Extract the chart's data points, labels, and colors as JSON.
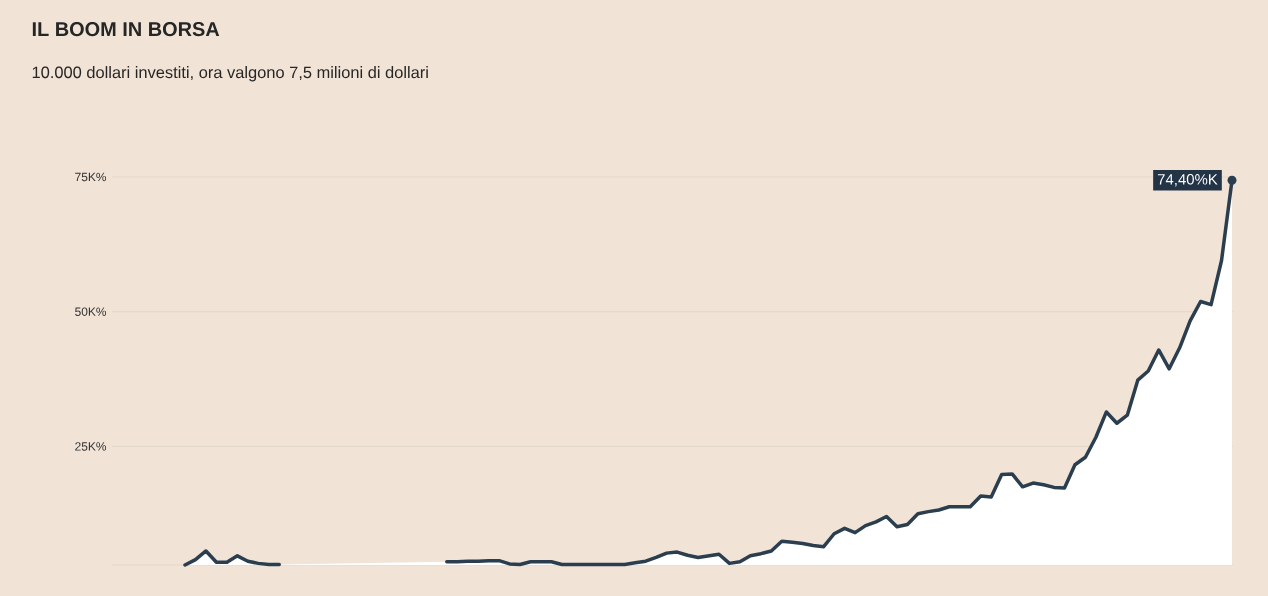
{
  "chart_data": {
    "type": "area",
    "title": "IL BOOM IN BORSA",
    "subtitle": "10.000 dollari investiti, ora valgono  7,5 milioni di dollari",
    "categories": [
      null,
      null,
      null,
      null,
      null,
      null,
      null,
      null,
      null,
      null,
      null,
      null,
      null,
      null,
      null,
      null,
      null,
      null,
      null,
      null,
      null,
      null,
      null,
      null,
      null,
      null,
      null,
      null,
      null,
      null,
      null,
      null,
      null,
      null,
      null,
      null,
      null,
      null,
      null,
      null,
      null,
      null,
      null,
      null,
      null,
      null,
      null,
      null,
      null,
      null,
      null,
      null,
      null,
      null,
      null,
      null,
      null,
      null,
      null,
      null,
      null,
      null,
      null,
      null,
      null,
      null,
      null,
      null,
      null,
      null,
      null,
      null,
      null,
      null,
      null,
      null,
      null,
      null,
      null,
      null,
      null,
      null,
      null,
      null,
      null,
      null,
      null,
      null,
      null,
      null,
      null,
      null,
      null,
      null,
      null,
      null,
      null,
      null,
      null,
      null,
      null
    ],
    "series": [
      {
        "color": "#2b3e50",
        "values": [
          3.0,
          4.0,
          5.6,
          3.5,
          3.5,
          4.7,
          3.7,
          3.3,
          3.1,
          3.1,
          null,
          null,
          null,
          null,
          null,
          null,
          null,
          null,
          null,
          null,
          null,
          null,
          null,
          null,
          null,
          3.6,
          3.6,
          3.7,
          3.7,
          3.8,
          3.8,
          3.2,
          3.1,
          3.6,
          3.6,
          3.6,
          3.1,
          3.1,
          3.1,
          3.1,
          3.1,
          3.1,
          3.1,
          3.4,
          3.7,
          4.4,
          5.2,
          5.4,
          4.8,
          4.4,
          4.7,
          5.0,
          3.3,
          3.6,
          4.7,
          5.1,
          5.6,
          7.4,
          7.2,
          7.0,
          6.6,
          6.4,
          8.8,
          9.8,
          9.0,
          10.3,
          11.0,
          12.0,
          10.1,
          10.5,
          12.5,
          12.9,
          13.2,
          13.8,
          13.8,
          13.8,
          15.8,
          15.6,
          19.8,
          19.9,
          17.5,
          18.2,
          17.9,
          17.4,
          17.3,
          21.6,
          23.0,
          26.7,
          31.4,
          29.3,
          30.8,
          37.3,
          39.0,
          42.9,
          39.4,
          43.3,
          48.3,
          51.9,
          51.3,
          59.5,
          74.4
        ]
      }
    ],
    "ylim": [
      3,
      75
    ],
    "yticks": [
      {
        "value": 25,
        "label": "25K%"
      },
      {
        "value": 50,
        "label": "50K%"
      },
      {
        "value": 75,
        "label": "75K%"
      }
    ],
    "grid": "y",
    "annotations": [
      "74,40%K"
    ]
  }
}
